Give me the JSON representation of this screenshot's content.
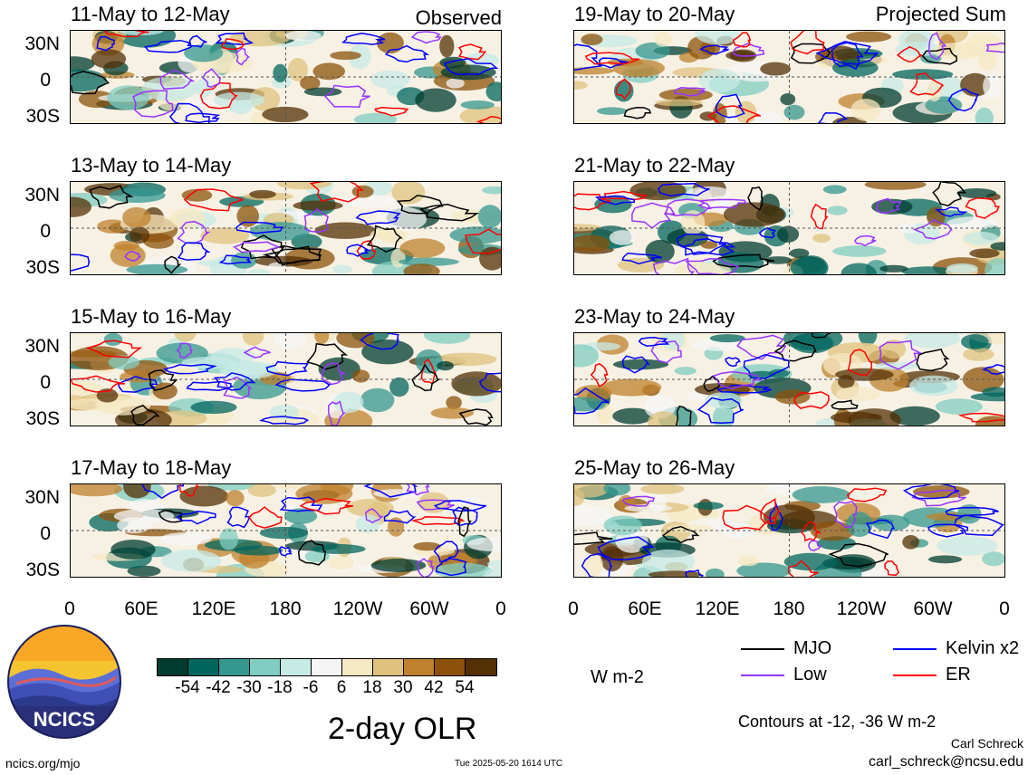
{
  "left_header": "Observed",
  "right_header": "Projected Sum",
  "panels_left": [
    {
      "title": "11-May to 12-May"
    },
    {
      "title": "13-May to 14-May"
    },
    {
      "title": "15-May to 16-May"
    },
    {
      "title": "17-May to 18-May"
    }
  ],
  "panels_right": [
    {
      "title": "19-May to 20-May"
    },
    {
      "title": "21-May to 22-May"
    },
    {
      "title": "23-May to 24-May"
    },
    {
      "title": "25-May to 26-May"
    }
  ],
  "y_ticks": [
    "30N",
    "0",
    "30S"
  ],
  "x_ticks": [
    "0",
    "60E",
    "120E",
    "180",
    "120W",
    "60W",
    "0"
  ],
  "colorbar": {
    "colors": [
      "#003c30",
      "#01665e",
      "#35978f",
      "#80cdc1",
      "#c7eae5",
      "#f5f5f5",
      "#f6e8c3",
      "#dfc27d",
      "#bf812d",
      "#8c510a",
      "#543005"
    ],
    "labels": [
      "-54",
      "-42",
      "-30",
      "-18",
      "-6",
      "6",
      "18",
      "30",
      "42",
      "54"
    ],
    "units": "W m-2"
  },
  "title": "2-day OLR",
  "legend": [
    {
      "label": "MJO",
      "color": "#000000"
    },
    {
      "label": "Kelvin x2",
      "color": "#0000ff"
    },
    {
      "label": "Low",
      "color": "#9933ff"
    },
    {
      "label": "ER",
      "color": "#ff0000"
    }
  ],
  "contours_note": "Contours at -12, -36 W m-2",
  "logo_text": "NCICS",
  "author": "Carl Schreck",
  "email": "carl_schreck@ncsu.edu",
  "url": "ncics.org/mjo",
  "timestamp": "Tue 2025-05-20 1614 UTC",
  "chart_data": {
    "type": "heatmap",
    "title": "2-day OLR",
    "units": "W m-2",
    "x_axis_ticks": [
      "0",
      "60E",
      "120E",
      "180",
      "120W",
      "60W",
      "0"
    ],
    "y_axis_ticks": [
      "30N",
      "0",
      "30S"
    ],
    "colorbar_levels": [
      -54,
      -42,
      -30,
      -18,
      -6,
      6,
      18,
      30,
      42,
      54
    ],
    "contour_levels": [
      -12,
      -36
    ],
    "contour_series": [
      "MJO",
      "Kelvin x2",
      "Low",
      "ER"
    ],
    "panels": [
      {
        "period": "11-May to 12-May",
        "group": "Observed"
      },
      {
        "period": "13-May to 14-May",
        "group": "Observed"
      },
      {
        "period": "15-May to 16-May",
        "group": "Observed"
      },
      {
        "period": "17-May to 18-May",
        "group": "Observed"
      },
      {
        "period": "19-May to 20-May",
        "group": "Projected Sum"
      },
      {
        "period": "21-May to 22-May",
        "group": "Projected Sum"
      },
      {
        "period": "23-May to 24-May",
        "group": "Projected Sum"
      },
      {
        "period": "25-May to 26-May",
        "group": "Projected Sum"
      }
    ]
  }
}
